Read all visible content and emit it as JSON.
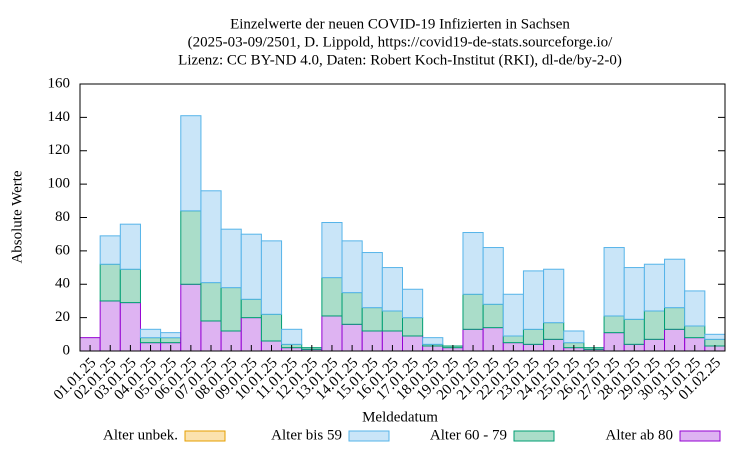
{
  "chart_data": {
    "type": "stacked-bar",
    "title_lines": [
      "Einzelwerte der neuen COVID-19 Infizierten in Sachsen",
      "(2025-03-09/2501, D. Lippold, https://covid19-de-stats.sourceforge.io/",
      "Lizenz: CC BY-ND 4.0, Daten: Robert Koch-Institut (RKI), dl-de/by-2-0)"
    ],
    "x_label": "Meldedatum",
    "y_label": "Absolute Werte",
    "categories": [
      "01.01.25",
      "02.01.25",
      "03.01.25",
      "04.01.25",
      "05.01.25",
      "06.01.25",
      "07.01.25",
      "08.01.25",
      "09.01.25",
      "10.01.25",
      "11.01.25",
      "12.01.25",
      "13.01.25",
      "14.01.25",
      "15.01.25",
      "16.01.25",
      "17.01.25",
      "18.01.25",
      "19.01.25",
      "20.01.25",
      "21.01.25",
      "22.01.25",
      "23.01.25",
      "24.01.25",
      "25.01.25",
      "26.01.25",
      "27.01.25",
      "28.01.25",
      "29.01.25",
      "30.01.25",
      "31.01.25",
      "01.02.25"
    ],
    "series": [
      {
        "name": "Alter unbek.",
        "color": "#e69f00",
        "fill": "#fbe2ae",
        "values": [
          0,
          0,
          0,
          0,
          0,
          0,
          0,
          0,
          0,
          0,
          0,
          0,
          0,
          0,
          0,
          0,
          0,
          0,
          0,
          0,
          0,
          0,
          0,
          0,
          0,
          0,
          0,
          0,
          0,
          0,
          0,
          0
        ]
      },
      {
        "name": "Alter bis 59",
        "color": "#56b4e9",
        "fill": "#c9e5f8",
        "values": [
          0,
          17,
          27,
          5,
          3,
          57,
          55,
          35,
          39,
          44,
          9,
          0,
          33,
          31,
          33,
          26,
          17,
          4,
          0,
          37,
          34,
          25,
          35,
          32,
          7,
          0,
          41,
          31,
          28,
          29,
          21,
          3
        ]
      },
      {
        "name": "Alter 60 - 79",
        "color": "#009e73",
        "fill": "#aaddc9",
        "values": [
          0,
          22,
          20,
          3,
          3,
          44,
          23,
          26,
          11,
          16,
          2,
          1,
          23,
          19,
          14,
          12,
          11,
          1,
          1,
          21,
          14,
          4,
          9,
          10,
          3,
          1,
          10,
          15,
          17,
          13,
          7,
          4
        ]
      },
      {
        "name": "Alter ab 80",
        "color": "#9400d3",
        "fill": "#deb3f2",
        "values": [
          8,
          30,
          29,
          5,
          5,
          40,
          18,
          12,
          20,
          6,
          2,
          1,
          21,
          16,
          12,
          12,
          9,
          3,
          2,
          13,
          14,
          5,
          4,
          7,
          2,
          1,
          11,
          4,
          7,
          13,
          8,
          3
        ]
      }
    ],
    "stack_order": [
      3,
      2,
      1,
      0
    ],
    "ylim": [
      0,
      160
    ],
    "yticks": [
      0,
      20,
      40,
      60,
      80,
      100,
      120,
      140,
      160
    ],
    "legend": "bottom"
  }
}
